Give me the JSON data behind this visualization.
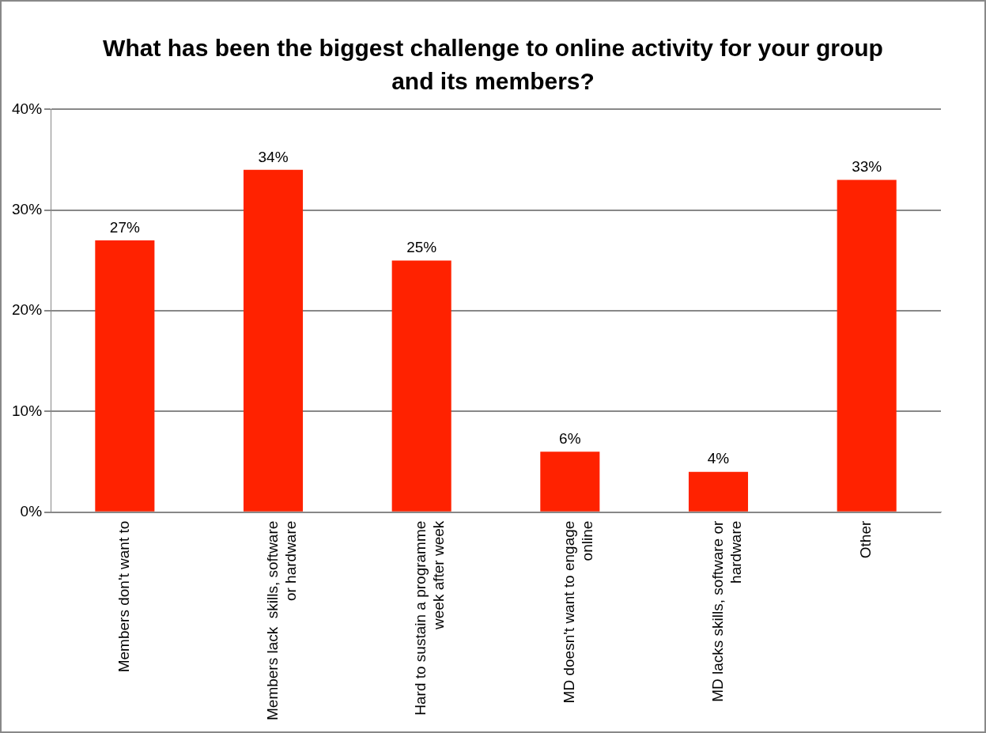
{
  "chart_data": {
    "type": "bar",
    "title": "What has been the biggest challenge to online activity for your group and its members?",
    "categories": [
      "Members don't want to",
      "Members lack  skills, software or hardware",
      "Hard to sustain a programme week after week",
      "MD doesn't want to engage online",
      "MD lacks skills, software or hardware",
      "Other"
    ],
    "values": [
      27,
      34,
      25,
      6,
      4,
      33
    ],
    "value_labels": [
      "27%",
      "34%",
      "25%",
      "6%",
      "4%",
      "33%"
    ],
    "color": "#ff2200",
    "ylim": [
      0,
      40
    ],
    "yticks": [
      {
        "value": 0,
        "label": "0%"
      },
      {
        "value": 10,
        "label": "10%"
      },
      {
        "value": 20,
        "label": "20%"
      },
      {
        "value": 30,
        "label": "30%"
      },
      {
        "value": 40,
        "label": "40%"
      }
    ],
    "grid": "y",
    "legend": false
  }
}
